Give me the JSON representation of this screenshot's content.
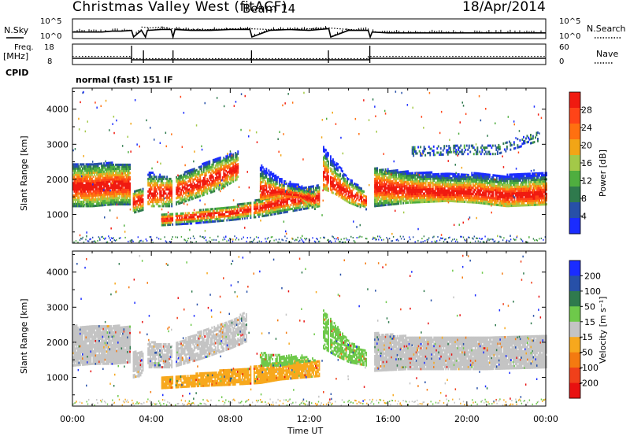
{
  "header": {
    "radar": "Christmas Valley West (fitACF)",
    "beam": "Beam 14",
    "date": "18/Apr/2014"
  },
  "chart_data": [
    {
      "type": "line",
      "panel": "Sky noise / search noise",
      "ylabel": "N.Sky",
      "right_label": "N.Search",
      "yticks_left": [
        "10^5",
        "10^0"
      ],
      "yticks_right": [
        "10^5",
        "10^0"
      ],
      "series": [
        {
          "name": "N.Sky",
          "style": "solid",
          "x": [
            0.0,
            0.5,
            1.0,
            1.5,
            2.0,
            2.5,
            3.0,
            3.1,
            3.5,
            3.7,
            3.8,
            4.5,
            5.0,
            5.1,
            5.2,
            6.0,
            7.0,
            8.0,
            9.0,
            9.1,
            10.0,
            11.0,
            12.0,
            13.0,
            13.1,
            14.0,
            15.0,
            15.1,
            15.2,
            16.0,
            17.0,
            18.0,
            19.0,
            20.0,
            21.0,
            22.0,
            23.0,
            24.0
          ],
          "y": [
            0.3,
            0.3,
            0.3,
            0.3,
            0.35,
            0.35,
            0.4,
            0.0,
            0.4,
            0.0,
            0.4,
            0.45,
            0.45,
            0.0,
            0.45,
            0.4,
            0.4,
            0.45,
            0.45,
            0.0,
            0.4,
            0.45,
            0.4,
            0.5,
            0.0,
            0.4,
            0.4,
            0.0,
            0.3,
            0.25,
            0.25,
            0.25,
            0.25,
            0.25,
            0.25,
            0.25,
            0.25,
            0.25
          ]
        },
        {
          "name": "N.Search",
          "style": "dotted",
          "x": [
            3.5,
            4.0,
            4.5,
            5.0,
            6.0,
            7.0,
            8.0,
            9.0,
            10.0,
            11.0,
            12.0,
            13.0,
            14.0,
            15.0
          ],
          "y": [
            0.6,
            0.55,
            0.6,
            0.5,
            0.45,
            0.45,
            0.5,
            0.5,
            0.45,
            0.45,
            0.5,
            0.55,
            0.45,
            0.4
          ]
        }
      ],
      "xlim": [
        0,
        24
      ]
    },
    {
      "type": "line",
      "panel": "Transmit frequency / number of averages",
      "ylabel": "Freq. [MHz]",
      "right_label": "Nave",
      "yticks_left": [
        "18",
        "8"
      ],
      "yticks_right": [
        "60",
        "0"
      ],
      "series": [
        {
          "name": "Freq.",
          "style": "solid",
          "x": [
            0.0,
            3.0,
            3.0,
            15.05,
            15.05,
            24.0
          ],
          "y": [
            10.7,
            10.7,
            9.8,
            9.8,
            10.7,
            10.7
          ]
        },
        {
          "name": "Nave",
          "style": "dotted",
          "x": [
            0.0,
            3.0,
            3.0,
            15.0,
            15.0,
            24.0
          ],
          "y": [
            23,
            23,
            15,
            15,
            23,
            23
          ]
        }
      ],
      "xlim": [
        0,
        24
      ]
    },
    {
      "type": "heatmap",
      "panel": "CPID",
      "label": "CPID",
      "text": "normal (fast) 151 IF"
    },
    {
      "type": "heatmap",
      "panel": "Power",
      "ylabel": "Slant Range [km]",
      "yticks": [
        1000,
        2000,
        3000,
        4000
      ],
      "ylim": [
        180,
        4600
      ],
      "colorbar": {
        "label": "Power [dB]",
        "ticks": [
          4,
          8,
          12,
          16,
          20,
          24,
          28
        ],
        "range": [
          0,
          32
        ],
        "colors": [
          "#1a2cff",
          "#2750a8",
          "#2f7a4d",
          "#4fae3f",
          "#a3c948",
          "#f2a516",
          "#ff7010",
          "#ff4418",
          "#f01a10"
        ]
      },
      "bands": [
        {
          "t": [
            0.0,
            1.0,
            2.0,
            2.9
          ],
          "lo": [
            1200,
            1200,
            1250,
            1250
          ],
          "hi": [
            2400,
            2450,
            2450,
            2400
          ],
          "core": [
            1750,
            1750,
            1800,
            1800
          ],
          "cw": 300,
          "alpha": 0.9
        },
        {
          "t": [
            3.0,
            3.3,
            3.6
          ],
          "lo": [
            1000,
            1050,
            1100
          ],
          "hi": [
            1650,
            1700,
            1700
          ],
          "core": [
            1300,
            1350,
            1400
          ],
          "cw": 200,
          "alpha": 0.85
        },
        {
          "t": [
            3.8,
            5.0,
            6.5,
            7.5,
            8.4
          ],
          "lo": [
            1200,
            1200,
            1500,
            1700,
            2000
          ],
          "hi": [
            2200,
            2000,
            2400,
            2600,
            2800
          ],
          "core": [
            1550,
            1600,
            1850,
            2100,
            2300
          ],
          "cw": 200,
          "alpha": 0.75
        },
        {
          "t": [
            4.5,
            6.0,
            8.0,
            9.5,
            10.5,
            11.5,
            12.5
          ],
          "lo": [
            650,
            700,
            800,
            900,
            1000,
            1100,
            1200
          ],
          "hi": [
            1000,
            1050,
            1200,
            1400,
            1600,
            1700,
            1800
          ],
          "core": [
            800,
            900,
            1000,
            1150,
            1300,
            1400,
            1450
          ],
          "cw": 180,
          "alpha": 0.8
        },
        {
          "t": [
            9.5,
            10.5,
            11.5,
            12.3
          ],
          "lo": [
            1400,
            1500,
            1450,
            1100
          ],
          "hi": [
            2400,
            2000,
            1800,
            1600
          ],
          "core": [
            1650,
            1600,
            1500,
            1350
          ],
          "cw": 180,
          "alpha": 0.75
        },
        {
          "t": [
            12.7,
            13.3,
            14.0,
            14.9
          ],
          "lo": [
            1700,
            1550,
            1300,
            1100
          ],
          "hi": [
            2900,
            2500,
            2000,
            1600
          ],
          "core": [
            2100,
            1800,
            1550,
            1350
          ],
          "cw": 180,
          "alpha": 0.75
        },
        {
          "t": [
            15.3,
            17.0,
            19.0,
            20.5,
            22.0,
            24.0
          ],
          "lo": [
            1200,
            1300,
            1350,
            1300,
            1200,
            1250
          ],
          "hi": [
            2300,
            2200,
            2150,
            2150,
            2100,
            2200
          ],
          "core": [
            1750,
            1650,
            1600,
            1600,
            1500,
            1550
          ],
          "cw": 280,
          "alpha": 0.9
        },
        {
          "t": [
            17.2,
            19.5,
            21.5,
            23.7
          ],
          "lo": [
            2650,
            2700,
            2700,
            3100
          ],
          "hi": [
            2900,
            3000,
            2950,
            3400
          ],
          "core": [
            2800,
            2850,
            2850,
            3200
          ],
          "cw": 0,
          "alpha": 0.4
        }
      ],
      "gaps": [
        [
          2.95,
          3.05
        ],
        [
          3.55,
          3.7
        ],
        [
          5.05,
          5.18
        ],
        [
          9.05,
          9.12
        ],
        [
          12.95,
          13.02
        ],
        [
          15.02,
          15.2
        ]
      ],
      "xlim": [
        0,
        24
      ]
    },
    {
      "type": "heatmap",
      "panel": "Velocity",
      "ylabel": "Slant Range [km]",
      "yticks": [
        1000,
        2000,
        3000,
        4000
      ],
      "ylim": [
        180,
        4600
      ],
      "colorbar": {
        "label": "Velocity [m s⁻¹]",
        "ticks": [
          200,
          100,
          50,
          15,
          -15,
          -50,
          -100,
          -200
        ],
        "colors": [
          "#1a2cff",
          "#2750a8",
          "#2f7a4d",
          "#6ec94a",
          "#c4c4c4",
          "#f7a81d",
          "#f47a10",
          "#f0401a",
          "#e81010"
        ]
      },
      "regions": [
        {
          "t": [
            0.0,
            1.0,
            2.0,
            2.9
          ],
          "lo": [
            1300,
            1350,
            1350,
            1400
          ],
          "hi": [
            2450,
            2450,
            2450,
            2450
          ],
          "v": "#c4c4c4",
          "alpha": 0.95
        },
        {
          "t": [
            3.0,
            3.6
          ],
          "lo": [
            950,
            1050
          ],
          "hi": [
            1700,
            1700
          ],
          "v": "#c4c4c4",
          "alpha": 0.8
        },
        {
          "t": [
            3.8,
            5.0,
            6.5,
            8.0,
            8.8
          ],
          "lo": [
            1250,
            1250,
            1500,
            1800,
            2000
          ],
          "hi": [
            2000,
            1900,
            2300,
            2600,
            2900
          ],
          "v": "#c4c4c4",
          "alpha": 0.8
        },
        {
          "t": [
            4.5,
            6.0,
            8.0,
            9.5,
            10.5,
            11.5,
            12.5
          ],
          "lo": [
            650,
            700,
            750,
            800,
            900,
            950,
            1000
          ],
          "hi": [
            950,
            1050,
            1200,
            1300,
            1400,
            1450,
            1450
          ],
          "v": "#f7a81d",
          "alpha": 0.9
        },
        {
          "t": [
            9.5,
            10.5,
            11.5,
            12.3
          ],
          "lo": [
            1300,
            1300,
            1400,
            1450
          ],
          "hi": [
            1700,
            1600,
            1600,
            1500
          ],
          "v": "#6ec94a",
          "alpha": 0.7
        },
        {
          "t": [
            12.7,
            13.3,
            14.0,
            14.9
          ],
          "lo": [
            1800,
            1600,
            1400,
            1300
          ],
          "hi": [
            2900,
            2500,
            2000,
            1700
          ],
          "v": "#6ec94a",
          "alpha": 0.75
        },
        {
          "t": [
            15.3,
            17.0,
            19.0,
            21.0,
            24.0
          ],
          "lo": [
            1150,
            1200,
            1200,
            1200,
            1250
          ],
          "hi": [
            2250,
            2150,
            2100,
            2150,
            2200
          ],
          "v": "#c4c4c4",
          "alpha": 0.95
        }
      ],
      "gaps": [
        [
          2.95,
          3.05
        ],
        [
          3.55,
          3.7
        ],
        [
          5.05,
          5.18
        ],
        [
          9.05,
          9.12
        ],
        [
          12.95,
          13.02
        ],
        [
          15.02,
          15.2
        ]
      ],
      "xlim": [
        0,
        24
      ]
    }
  ],
  "x_axis": {
    "ticks": [
      "00:00",
      "04:00",
      "08:00",
      "12:00",
      "16:00",
      "20:00",
      "00:00"
    ],
    "tick_hours": [
      0,
      4,
      8,
      12,
      16,
      20,
      24
    ],
    "label": "Time UT"
  }
}
